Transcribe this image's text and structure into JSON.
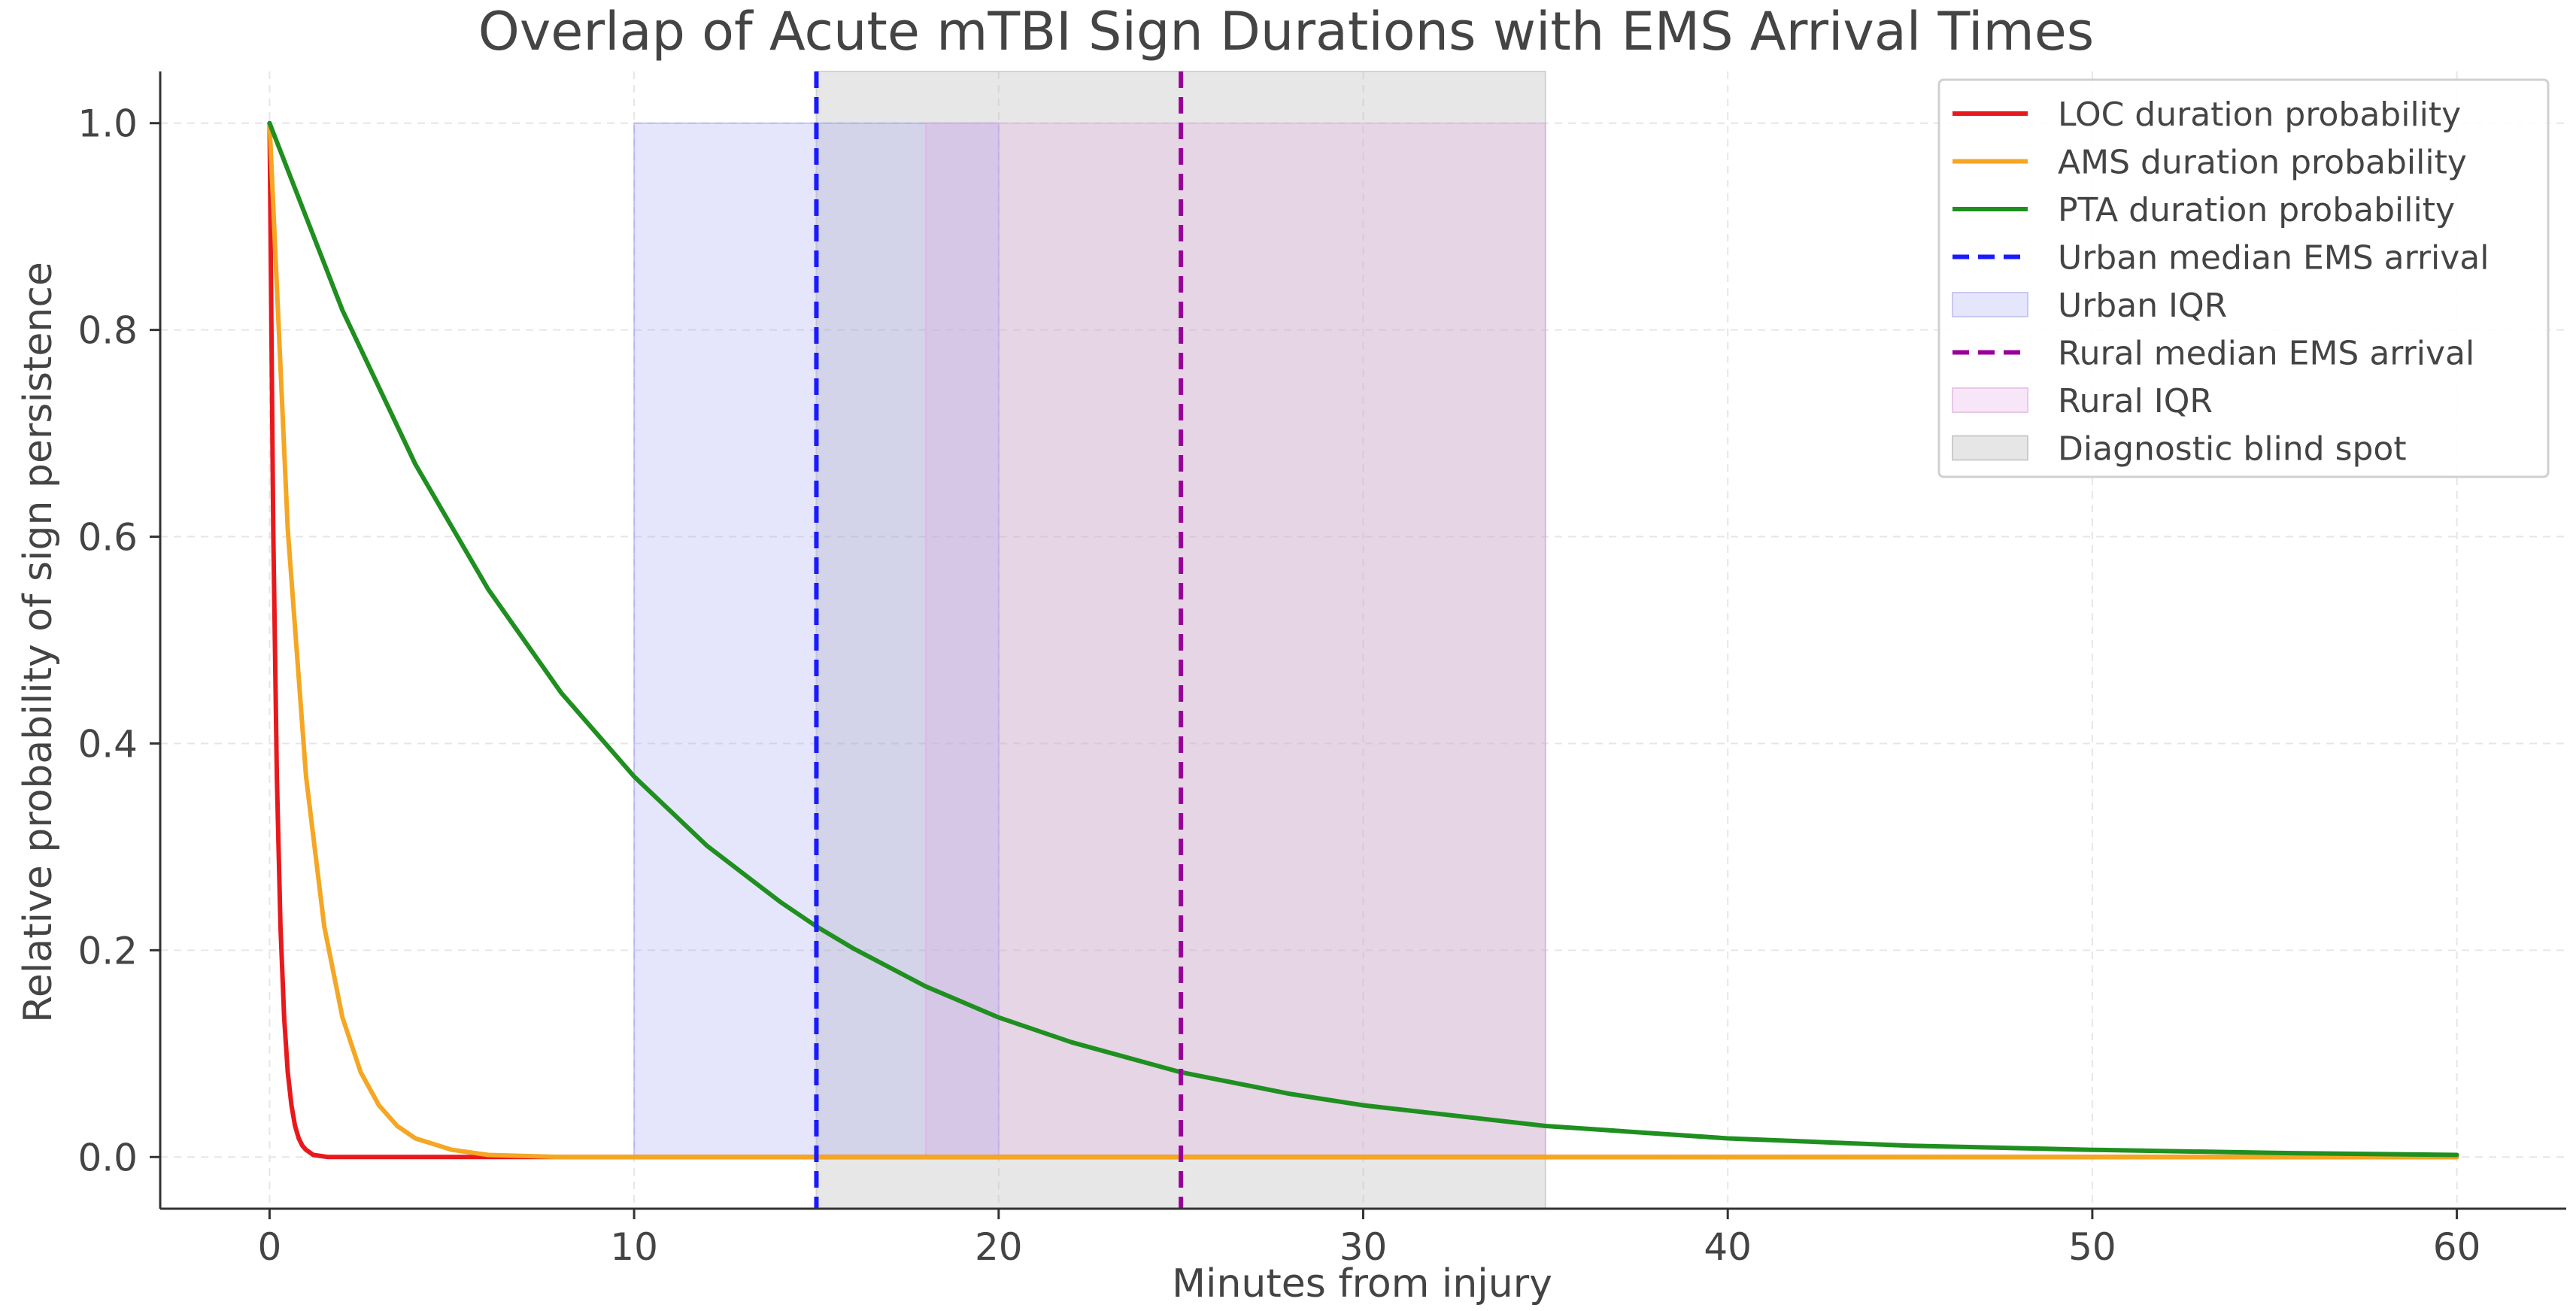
{
  "chart_data": {
    "type": "line",
    "title": "Overlap of Acute mTBI Sign Durations with EMS Arrival Times",
    "xlabel": "Minutes from injury",
    "ylabel": "Relative probability of sign persistence",
    "xlim": [
      -3,
      63
    ],
    "ylim": [
      -0.05,
      1.05
    ],
    "xticks": [
      0,
      10,
      20,
      30,
      40,
      50,
      60
    ],
    "yticks": [
      0.0,
      0.2,
      0.4,
      0.6,
      0.8,
      1.0
    ],
    "xtick_labels": [
      "0",
      "10",
      "20",
      "30",
      "40",
      "50",
      "60"
    ],
    "ytick_labels": [
      "0.0",
      "0.2",
      "0.4",
      "0.6",
      "0.8",
      "1.0"
    ],
    "grid": true,
    "legend_position": "top-right",
    "series": [
      {
        "name": "LOC duration probability",
        "color": "#e8191c",
        "x": [
          0,
          0.1,
          0.2,
          0.3,
          0.4,
          0.5,
          0.6,
          0.7,
          0.8,
          0.9,
          1.0,
          1.2,
          1.4,
          1.6,
          2.0,
          3.0,
          5.0,
          10,
          20,
          30,
          40,
          50,
          60
        ],
        "y": [
          1.0,
          0.607,
          0.368,
          0.223,
          0.135,
          0.082,
          0.05,
          0.03,
          0.018,
          0.011,
          0.007,
          0.002,
          0.001,
          0.0,
          0.0,
          0.0,
          0.0,
          0.0,
          0.0,
          0.0,
          0.0,
          0.0,
          0.0
        ]
      },
      {
        "name": "AMS duration probability",
        "color": "#f5a623",
        "x": [
          0,
          0.5,
          1,
          1.5,
          2,
          2.5,
          3,
          3.5,
          4,
          5,
          6,
          7,
          8,
          9,
          10,
          12,
          15,
          20,
          30,
          40,
          50,
          60
        ],
        "y": [
          1.0,
          0.607,
          0.368,
          0.223,
          0.135,
          0.082,
          0.05,
          0.03,
          0.018,
          0.007,
          0.002,
          0.001,
          0.0,
          0.0,
          0.0,
          0.0,
          0.0,
          0.0,
          0.0,
          0.0,
          0.0,
          0.0
        ]
      },
      {
        "name": "PTA duration probability",
        "color": "#1f8f1f",
        "x": [
          0,
          2,
          4,
          6,
          8,
          10,
          12,
          14,
          15,
          16,
          18,
          20,
          22,
          25,
          28,
          30,
          35,
          40,
          45,
          50,
          55,
          60
        ],
        "y": [
          1.0,
          0.819,
          0.67,
          0.549,
          0.449,
          0.368,
          0.301,
          0.247,
          0.223,
          0.202,
          0.165,
          0.135,
          0.111,
          0.082,
          0.061,
          0.05,
          0.03,
          0.018,
          0.011,
          0.007,
          0.004,
          0.002
        ]
      }
    ],
    "vlines": [
      {
        "name": "Urban median EMS arrival",
        "x": 15,
        "color": "#1a1aff",
        "style": "dashed"
      },
      {
        "name": "Rural median EMS arrival",
        "x": 25,
        "color": "#990099",
        "style": "dashed"
      }
    ],
    "spans": [
      {
        "name": "Diagnostic blind spot",
        "x0": 15,
        "x1": 35,
        "y0": -0.05,
        "y1": 1.05,
        "color": "#b3b3b3",
        "opacity": 0.32
      },
      {
        "name": "Urban IQR",
        "x0": 10,
        "x1": 20,
        "y0": 0.0,
        "y1": 1.0,
        "color": "#9999ee",
        "opacity": 0.25
      },
      {
        "name": "Rural IQR",
        "x0": 18,
        "x1": 35,
        "y0": 0.0,
        "y1": 1.0,
        "color": "#e3a8e3",
        "opacity": 0.28
      }
    ],
    "legend": [
      {
        "label": "LOC duration probability",
        "kind": "line",
        "color": "#e8191c"
      },
      {
        "label": "AMS duration probability",
        "kind": "line",
        "color": "#f5a623"
      },
      {
        "label": "PTA duration probability",
        "kind": "line",
        "color": "#1f8f1f"
      },
      {
        "label": "Urban median EMS arrival",
        "kind": "dash",
        "color": "#1a1aff"
      },
      {
        "label": "Urban IQR",
        "kind": "patch",
        "color": "#e5e5fb",
        "edge": "#c8c8f0"
      },
      {
        "label": "Rural median EMS arrival",
        "kind": "dash",
        "color": "#990099"
      },
      {
        "label": "Rural IQR",
        "kind": "patch",
        "color": "#f7e6f7",
        "edge": "#e8c8e8"
      },
      {
        "label": "Diagnostic blind spot",
        "kind": "patch",
        "color": "#e6e6e6",
        "edge": "#cccccc"
      }
    ]
  }
}
